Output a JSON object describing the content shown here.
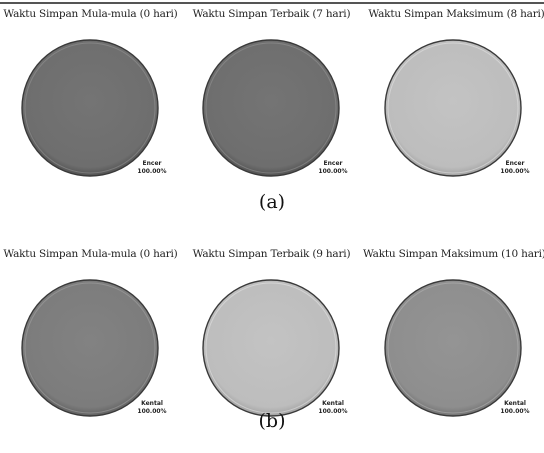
{
  "chart_data": [
    {
      "type": "pie",
      "title": "Waktu Simpan Mula-mula (0 hari)",
      "categories": [
        "Encer"
      ],
      "values": [
        100.0
      ],
      "data_labels": [
        {
          "name": "Encer",
          "pct": "100.00%"
        }
      ],
      "colors": [
        "#6e6e6e"
      ]
    },
    {
      "type": "pie",
      "title": "Waktu Simpan Terbaik (7 hari)",
      "categories": [
        "Encer"
      ],
      "values": [
        100.0
      ],
      "data_labels": [
        {
          "name": "Encer",
          "pct": "100.00%"
        }
      ],
      "colors": [
        "#6e6e6e"
      ]
    },
    {
      "type": "pie",
      "title": "Waktu Simpan Maksimum (8 hari)",
      "categories": [
        "Encer"
      ],
      "values": [
        100.0
      ],
      "data_labels": [
        {
          "name": "Encer",
          "pct": "100.00%"
        }
      ],
      "colors": [
        "#bdbdbd"
      ]
    },
    {
      "type": "pie",
      "title": "Waktu Simpan Mula-mula (0 hari)",
      "categories": [
        "Kental"
      ],
      "values": [
        100.0
      ],
      "data_labels": [
        {
          "name": "Kental",
          "pct": "100.00%"
        }
      ],
      "colors": [
        "#7c7c7c"
      ]
    },
    {
      "type": "pie",
      "title": "Waktu Simpan Terbaik (9 hari)",
      "categories": [
        "Kental"
      ],
      "values": [
        100.0
      ],
      "data_labels": [
        {
          "name": "Kental",
          "pct": "100.00%"
        }
      ],
      "colors": [
        "#bdbdbd"
      ]
    },
    {
      "type": "pie",
      "title": "Waktu Simpan Maksimum (10 hari)",
      "categories": [
        "Kental"
      ],
      "values": [
        100.0
      ],
      "data_labels": [
        {
          "name": "Kental",
          "pct": "100.00%"
        }
      ],
      "colors": [
        "#8e8e8e"
      ]
    }
  ],
  "captions": {
    "a": "(a)",
    "b": "(b)"
  }
}
